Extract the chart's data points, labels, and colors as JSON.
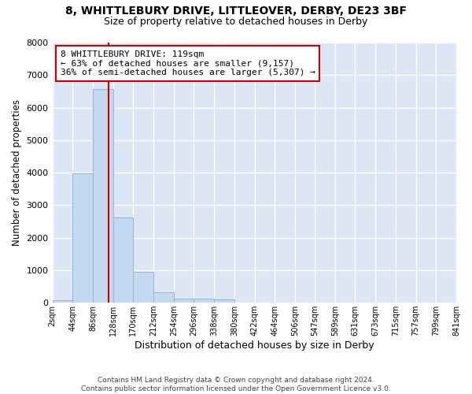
{
  "title_line1": "8, WHITTLEBURY DRIVE, LITTLEOVER, DERBY, DE23 3BF",
  "title_line2": "Size of property relative to detached houses in Derby",
  "xlabel": "Distribution of detached houses by size in Derby",
  "ylabel": "Number of detached properties",
  "bin_edges": [
    2,
    44,
    86,
    128,
    170,
    212,
    254,
    296,
    338,
    380,
    422,
    464,
    506,
    547,
    589,
    631,
    673,
    715,
    757,
    799,
    841
  ],
  "bin_labels": [
    "2sqm",
    "44sqm",
    "86sqm",
    "128sqm",
    "170sqm",
    "212sqm",
    "254sqm",
    "296sqm",
    "338sqm",
    "380sqm",
    "422sqm",
    "464sqm",
    "506sqm",
    "547sqm",
    "589sqm",
    "631sqm",
    "673sqm",
    "715sqm",
    "757sqm",
    "799sqm",
    "841sqm"
  ],
  "bar_heights": [
    75,
    3980,
    6580,
    2620,
    960,
    310,
    130,
    130,
    100,
    0,
    0,
    0,
    0,
    0,
    0,
    0,
    0,
    0,
    0,
    0
  ],
  "bar_color": "#c5d9f0",
  "bar_edge_color": "#8fb4d9",
  "property_size": 119,
  "vline_color": "#cc0000",
  "annotation_text": "8 WHITTLEBURY DRIVE: 119sqm\n← 63% of detached houses are smaller (9,157)\n36% of semi-detached houses are larger (5,307) →",
  "annotation_box_color": "#ffffff",
  "annotation_box_edge": "#cc0000",
  "ylim": [
    0,
    8000
  ],
  "yticks": [
    0,
    1000,
    2000,
    3000,
    4000,
    5000,
    6000,
    7000,
    8000
  ],
  "background_color": "#dce6f5",
  "grid_color": "#ffffff",
  "fig_background": "#ffffff",
  "footer_text": "Contains HM Land Registry data © Crown copyright and database right 2024.\nContains public sector information licensed under the Open Government Licence v3.0."
}
